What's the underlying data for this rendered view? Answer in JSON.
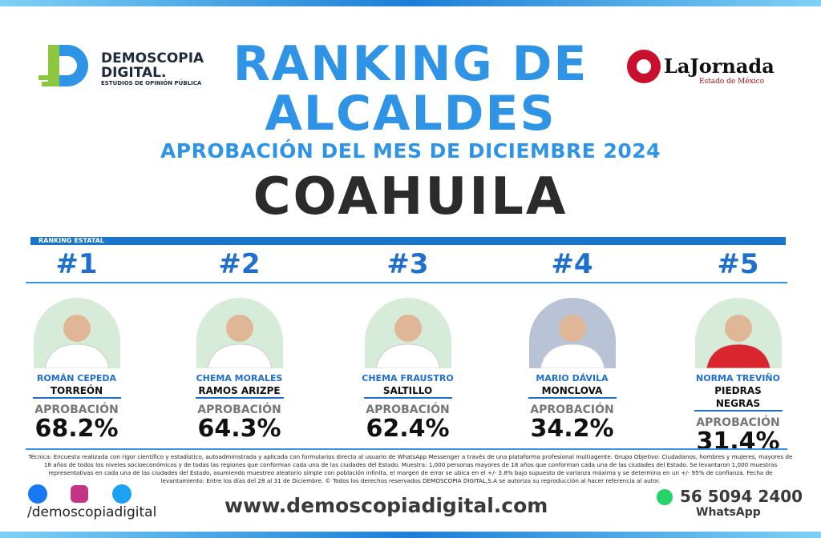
{
  "header": {
    "logo_name": "DEMOSCOPIA",
    "logo_name2": "DIGITAL.",
    "logo_tagline": "ESTUDIOS DE OPINIÓN PÚBLICA",
    "title_line1": "RANKING DE",
    "title_line2": "ALCALDES",
    "subtitle": "APROBACIÓN DEL MES DE DICIEMBRE 2024",
    "state": "COAHUILA",
    "partner": "LaJornada",
    "partner_sub": "Estado de México"
  },
  "section_label": "RANKING ESTATAL",
  "candidates": [
    {
      "rank": "#1",
      "name": "ROMÁN CEPEDA",
      "city": "TORREÓN",
      "approval_label": "APROBACIÓN",
      "approval": "68.2%"
    },
    {
      "rank": "#2",
      "name": "CHEMA MORALES",
      "city": "RAMOS ARIZPE",
      "approval_label": "APROBACIÓN",
      "approval": "64.3%"
    },
    {
      "rank": "#3",
      "name": "CHEMA FRAUSTRO",
      "city": "SALTILLO",
      "approval_label": "APROBACIÓN",
      "approval": "62.4%"
    },
    {
      "rank": "#4",
      "name": "MARIO DÁVILA",
      "city": "MONCLOVA",
      "approval_label": "APROBACIÓN",
      "approval": "34.2%"
    },
    {
      "rank": "#5",
      "name": "NORMA TREVIÑO",
      "city": "PIEDRAS NEGRAS",
      "approval_label": "APROBACIÓN",
      "approval": "31.4%"
    }
  ],
  "footer": {
    "note": "Técnica: Encuesta realizada con rigor científico y estadístico, autoadministrada y aplicada con formularios directo al usuario de WhatsApp Messenger a través de una plataforma profesional multiagente. Grupo Objetivo: Ciudadanos, hombres y mujeres, mayores de 18 años de todos los niveles socioeconómicos y de todas las regiones que conforman cada una de las ciudades del Estado. Muestra: 1,000 personas mayores de 18 años que conforman cada una de las ciudades del Estado. Se levantaron 1,000 muestras representativas en cada una de las ciudades del Estado, asumiendo muestreo aleatorio simple con población infinita, el margen de error se ubica en el +/- 3.8% bajo supuesto de varianza máxima y se determina en un +/- 95% de confianza. Fecha de levantamiento: Entre los días del 28 al 31 de Diciembre. © Todos los derechos reservados DEMOSCOPIA DIGITAL,S.A se autoriza su reproducción al hacer referencia al autor.",
    "social": "/demoscopiadigital",
    "website": "www.demoscopiadigital.com",
    "phone": "56 5094 2400",
    "phone_label": "WhatsApp"
  }
}
